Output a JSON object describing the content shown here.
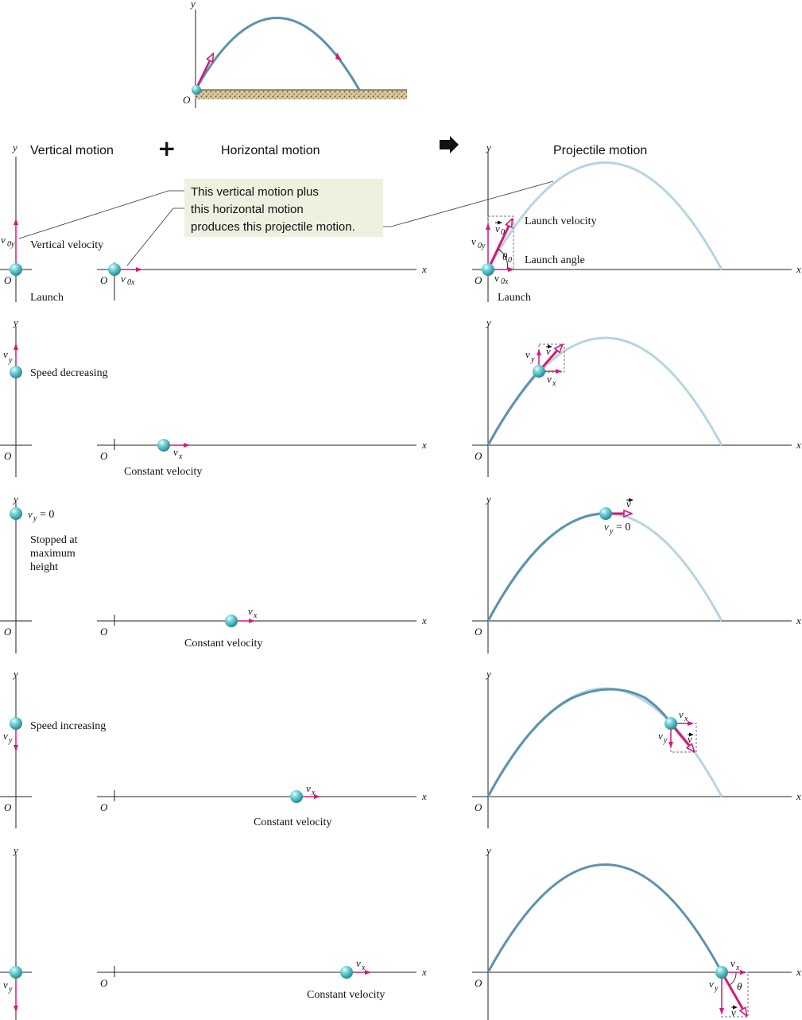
{
  "headers": {
    "vertical": "Vertical motion",
    "plus": "+",
    "horizontal": "Horizontal motion",
    "arrow": "➡",
    "projectile": "Projectile motion"
  },
  "callout": {
    "line1": "This vertical motion plus",
    "line2": "this horizontal motion",
    "line3": "produces this projectile motion."
  },
  "axes": {
    "origin": "O",
    "x": "x",
    "y": "y"
  },
  "symbols": {
    "v": "v",
    "sub_0y": "0y",
    "sub_0x": "0x",
    "sub_0": "0",
    "sub_y": "y",
    "sub_x": "x",
    "vy_zero": "= 0",
    "theta": "θ"
  },
  "labels": {
    "vertical_velocity": "Vertical velocity",
    "launch": "Launch",
    "launch_velocity": "Launch velocity",
    "launch_angle": "Launch angle",
    "speed_decreasing": "Speed decreasing",
    "stopped_1": "Stopped at",
    "stopped_2": "maximum",
    "stopped_3": "height",
    "speed_increasing": "Speed increasing",
    "constant_velocity": "Constant velocity"
  },
  "colors": {
    "ball": "#4fc3c8",
    "path_dark": "#5b93ad",
    "path_light": "#b7d4e2",
    "vector": "#d4197a",
    "callout_bg": "#eef0e0",
    "ground": "#c8b48a"
  }
}
